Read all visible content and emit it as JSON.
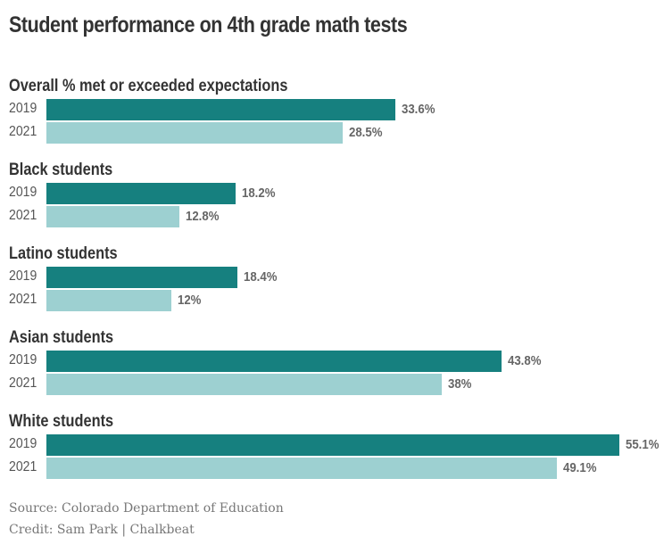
{
  "title": "Student performance on 4th grade math tests",
  "footer": {
    "source": "Source: Colorado Department of Education",
    "credit": "Credit: Sam Park | Chalkbeat"
  },
  "colors": {
    "2019": "#16807f",
    "2021": "#9dd0d1"
  },
  "chart_data": {
    "type": "bar",
    "orientation": "horizontal",
    "categories": [
      "Overall % met or exceeded expectations",
      "Black students",
      "Latino students",
      "Asian students",
      "White students"
    ],
    "series": [
      {
        "name": "2019",
        "values": [
          33.6,
          18.2,
          18.4,
          43.8,
          55.1
        ],
        "labels": [
          "33.6%",
          "18.2%",
          "18.4%",
          "43.8%",
          "55.1%"
        ]
      },
      {
        "name": "2021",
        "values": [
          28.5,
          12.8,
          12,
          38,
          49.1
        ],
        "labels": [
          "28.5%",
          "12.8%",
          "12%",
          "38%",
          "49.1%"
        ]
      }
    ],
    "xlim": [
      0,
      55.1
    ],
    "grid": false
  }
}
